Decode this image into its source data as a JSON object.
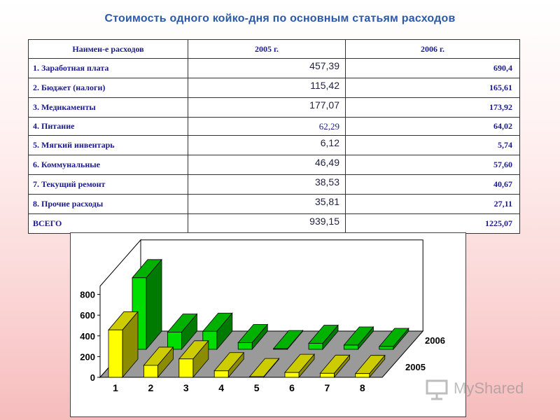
{
  "title": "Стоимость одного койко-дня по основным статьям расходов",
  "table": {
    "headers": [
      "Наимен-е расходов",
      "2005 г.",
      "2006 г."
    ],
    "rows": [
      {
        "name": "1. Заработная плата",
        "v2005": "457,39",
        "v2006": "690,4"
      },
      {
        "name": "2. Бюджет (налоги)",
        "v2005": "115,42",
        "v2006": "165,61"
      },
      {
        "name": "3. Медикаменты",
        "v2005": "177,07",
        "v2006": "173,92"
      },
      {
        "name": "4. Питание",
        "v2005": "62,29",
        "v2006": "64,02"
      },
      {
        "name": "5. Мягкий инвентарь",
        "v2005": "6,12",
        "v2006": "5,74"
      },
      {
        "name": "6. Коммунальные",
        "v2005": "46,49",
        "v2006": "57,60"
      },
      {
        "name": "7. Текущий ремонт",
        "v2005": "38,53",
        "v2006": "40,67"
      },
      {
        "name": "8. Прочие расходы",
        "v2005": "35,81",
        "v2006": "27,11"
      },
      {
        "name": "ВСЕГО",
        "v2005": "939,15",
        "v2006": "1225,07"
      }
    ]
  },
  "chart_data": {
    "type": "bar",
    "categories": [
      "1",
      "2",
      "3",
      "4",
      "5",
      "6",
      "7",
      "8"
    ],
    "series": [
      {
        "name": "2005",
        "values": [
          457.39,
          115.42,
          177.07,
          62.29,
          6.12,
          46.49,
          38.53,
          35.81
        ],
        "color": "#ffff00"
      },
      {
        "name": "2006",
        "values": [
          690.4,
          165.61,
          173.92,
          64.02,
          5.74,
          57.6,
          40.67,
          27.11
        ],
        "color": "#00dd00"
      }
    ],
    "yticks": [
      "0",
      "200",
      "400",
      "600",
      "800"
    ],
    "ylim": [
      0,
      800
    ],
    "grid": false,
    "style": "3d-clustered"
  },
  "colors": {
    "title": "#2a5aa8",
    "table_text": "#1a1a88",
    "bar_2005": "#ffff00",
    "bar_2006": "#00dd00"
  },
  "watermark": {
    "text": "MyShared",
    "icon": "presentation-board-icon"
  }
}
